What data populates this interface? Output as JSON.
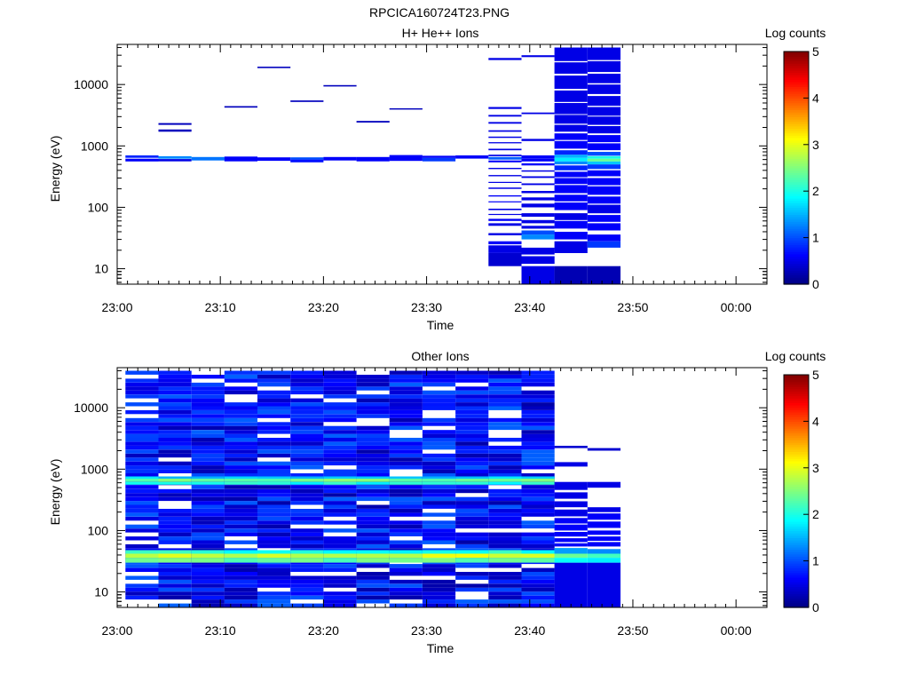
{
  "figure_title": "RPCICA160724T23.PNG",
  "chart_data": [
    {
      "type": "heatmap",
      "title": "H+ He++ Ions",
      "xlabel": "Time",
      "ylabel": "Energy (eV)",
      "x_tick_labels": [
        "23:00",
        "23:10",
        "23:20",
        "23:30",
        "23:40",
        "23:50",
        "00:00"
      ],
      "y_tick_labels": [
        "10",
        "100",
        "1000",
        "10000"
      ],
      "y_scale": "log",
      "ylim": [
        5.6,
        45000
      ],
      "xlim_minutes": [
        0,
        63
      ],
      "colorbar": {
        "label": "Log counts",
        "range": [
          0,
          5
        ],
        "tick_labels": [
          "0",
          "1",
          "2",
          "3",
          "4",
          "5"
        ]
      },
      "columns": [
        {
          "t": [
            0.8,
            4.0
          ],
          "cells": [
            [
              560,
              620,
              0.6
            ],
            [
              640,
              700,
              0.8
            ]
          ]
        },
        {
          "t": [
            4.0,
            7.2
          ],
          "cells": [
            [
              560,
              610,
              0.5
            ],
            [
              620,
              680,
              1.3
            ],
            [
              1700,
              1850,
              0.3
            ],
            [
              2200,
              2350,
              0.3
            ]
          ]
        },
        {
          "t": [
            7.2,
            10.4
          ],
          "cells": [
            [
              580,
              660,
              1.2
            ]
          ]
        },
        {
          "t": [
            10.4,
            13.6
          ],
          "cells": [
            [
              560,
              670,
              0.6
            ],
            [
              4200,
              4450,
              0.3
            ]
          ]
        },
        {
          "t": [
            13.6,
            16.8
          ],
          "cells": [
            [
              570,
              650,
              0.6
            ],
            [
              18500,
              19500,
              0.3
            ]
          ]
        },
        {
          "t": [
            16.8,
            20.0
          ],
          "cells": [
            [
              540,
              600,
              0.7
            ],
            [
              600,
              650,
              1.0
            ],
            [
              5200,
              5500,
              0.3
            ]
          ]
        },
        {
          "t": [
            20.0,
            23.2
          ],
          "cells": [
            [
              580,
              660,
              0.6
            ],
            [
              9300,
              9800,
              0.3
            ]
          ]
        },
        {
          "t": [
            23.2,
            26.4
          ],
          "cells": [
            [
              560,
              660,
              0.6
            ],
            [
              2400,
              2550,
              0.3
            ]
          ]
        },
        {
          "t": [
            26.4,
            29.6
          ],
          "cells": [
            [
              570,
              710,
              0.6
            ],
            [
              3900,
              4100,
              0.3
            ]
          ]
        },
        {
          "t": [
            29.6,
            32.8
          ],
          "cells": [
            [
              560,
              640,
              0.9
            ],
            [
              640,
              690,
              0.6
            ]
          ]
        },
        {
          "t": [
            32.8,
            36.0
          ],
          "cells": [
            [
              620,
              700,
              0.6
            ]
          ]
        },
        {
          "t": [
            36.0,
            39.2
          ],
          "cells": [
            [
              11,
              18,
              0.4
            ],
            [
              18,
              24,
              0.5
            ],
            [
              25,
              28,
              0.6
            ],
            [
              35,
              38,
              0.5
            ],
            [
              50,
              55,
              0.5
            ],
            [
              60,
              65,
              0.6
            ],
            [
              75,
              78,
              0.5
            ],
            [
              90,
              95,
              0.5
            ],
            [
              120,
              125,
              0.6
            ],
            [
              150,
              157,
              0.6
            ],
            [
              200,
              210,
              0.5
            ],
            [
              250,
              260,
              0.5
            ],
            [
              320,
              335,
              0.5
            ],
            [
              420,
              440,
              0.5
            ],
            [
              540,
              580,
              0.6
            ],
            [
              600,
              660,
              1.1
            ],
            [
              680,
              720,
              0.5
            ],
            [
              850,
              900,
              0.5
            ],
            [
              1100,
              1150,
              0.5
            ],
            [
              1350,
              1420,
              0.5
            ],
            [
              1700,
              1800,
              0.5
            ],
            [
              2300,
              2450,
              0.5
            ],
            [
              3000,
              3200,
              0.5
            ],
            [
              4000,
              4300,
              0.5
            ],
            [
              25000,
              27000,
              0.5
            ]
          ]
        },
        {
          "t": [
            39.2,
            42.4
          ],
          "cells": [
            [
              5.6,
              11,
              0.5
            ],
            [
              12,
              16,
              0.5
            ],
            [
              17,
              22,
              0.5
            ],
            [
              30,
              36,
              1.3
            ],
            [
              36,
              42,
              1.0
            ],
            [
              45,
              50,
              0.5
            ],
            [
              55,
              62,
              0.5
            ],
            [
              70,
              80,
              0.5
            ],
            [
              100,
              115,
              0.5
            ],
            [
              130,
              145,
              0.5
            ],
            [
              170,
              185,
              0.5
            ],
            [
              230,
              245,
              0.5
            ],
            [
              300,
              320,
              0.5
            ],
            [
              380,
              400,
              0.5
            ],
            [
              480,
              520,
              0.6
            ],
            [
              560,
              620,
              0.6
            ],
            [
              620,
              700,
              0.6
            ],
            [
              1200,
              1300,
              0.5
            ],
            [
              3300,
              3500,
              0.5
            ],
            [
              28000,
              30000,
              0.5
            ]
          ]
        },
        {
          "t": [
            42.4,
            45.6
          ],
          "cells": [
            [
              5.6,
              11,
              0.25
            ],
            [
              18,
              28,
              0.5
            ],
            [
              30,
              40,
              0.6
            ],
            [
              45,
              60,
              0.6
            ],
            [
              62,
              80,
              0.5
            ],
            [
              90,
              120,
              0.6
            ],
            [
              125,
              160,
              0.6
            ],
            [
              170,
              230,
              0.6
            ],
            [
              240,
              300,
              0.6
            ],
            [
              310,
              380,
              0.6
            ],
            [
              400,
              480,
              0.8
            ],
            [
              500,
              560,
              1.3
            ],
            [
              560,
              640,
              1.8
            ],
            [
              640,
              720,
              1.5
            ],
            [
              720,
              850,
              0.8
            ],
            [
              900,
              1200,
              0.6
            ],
            [
              1250,
              1600,
              0.6
            ],
            [
              1700,
              2200,
              0.5
            ],
            [
              2300,
              3200,
              0.5
            ],
            [
              3300,
              5000,
              0.5
            ],
            [
              5200,
              8000,
              0.5
            ],
            [
              8500,
              14000,
              0.5
            ],
            [
              15000,
              23000,
              0.5
            ],
            [
              24000,
              40000,
              0.5
            ]
          ]
        },
        {
          "t": [
            45.6,
            48.8
          ],
          "cells": [
            [
              5.6,
              11,
              0.25
            ],
            [
              22,
              28,
              0.9
            ],
            [
              28,
              36,
              0.6
            ],
            [
              42,
              55,
              0.6
            ],
            [
              58,
              75,
              0.6
            ],
            [
              80,
              110,
              0.5
            ],
            [
              115,
              150,
              0.6
            ],
            [
              160,
              220,
              0.6
            ],
            [
              230,
              300,
              0.6
            ],
            [
              320,
              400,
              0.6
            ],
            [
              420,
              500,
              0.9
            ],
            [
              500,
              560,
              1.6
            ],
            [
              560,
              620,
              2.4
            ],
            [
              620,
              680,
              2.0
            ],
            [
              690,
              800,
              1.0
            ],
            [
              850,
              1100,
              0.6
            ],
            [
              1150,
              1500,
              0.6
            ],
            [
              1600,
              2100,
              0.5
            ],
            [
              2200,
              3000,
              0.5
            ],
            [
              3100,
              4300,
              0.5
            ],
            [
              4500,
              6500,
              0.5
            ],
            [
              7000,
              10000,
              0.5
            ],
            [
              10500,
              15000,
              0.5
            ],
            [
              16000,
              24000,
              0.5
            ],
            [
              25000,
              40000,
              0.5
            ]
          ]
        }
      ]
    },
    {
      "type": "heatmap",
      "title": "Other Ions",
      "xlabel": "Time",
      "ylabel": "Energy (eV)",
      "x_tick_labels": [
        "23:00",
        "23:10",
        "23:20",
        "23:30",
        "23:40",
        "23:50",
        "00:00"
      ],
      "y_tick_labels": [
        "10",
        "100",
        "1000",
        "10000"
      ],
      "y_scale": "log",
      "ylim": [
        5.6,
        45000
      ],
      "xlim_minutes": [
        0,
        63
      ],
      "colorbar": {
        "label": "Log counts",
        "range": [
          0,
          5
        ],
        "tick_labels": [
          "0",
          "1",
          "2",
          "3",
          "4",
          "5"
        ]
      },
      "dense_columns": {
        "t_start": 0.8,
        "t_step": 3.2,
        "count": 13,
        "e_min": 5.6,
        "e_max": 40000
      },
      "bands": [
        {
          "e": [
            30,
            36
          ],
          "v": 2.4
        },
        {
          "e": [
            36,
            42
          ],
          "v": 2.9
        },
        {
          "e": [
            42,
            48
          ],
          "v": 2.0
        },
        {
          "e": [
            560,
            620
          ],
          "v": 2.0
        },
        {
          "e": [
            620,
            700
          ],
          "v": 2.4
        },
        {
          "e": [
            700,
            760
          ],
          "v": 1.7
        }
      ],
      "sparse_columns": [
        {
          "t": [
            42.4,
            45.6
          ],
          "cells": [
            [
              5.6,
              30,
              0.5
            ],
            [
              30,
              36,
              1.9
            ],
            [
              36,
              42,
              2.4
            ],
            [
              42,
              52,
              1.4
            ],
            [
              55,
              62,
              0.6
            ],
            [
              65,
              75,
              0.6
            ],
            [
              80,
              95,
              0.6
            ],
            [
              100,
              125,
              0.6
            ],
            [
              130,
              160,
              0.6
            ],
            [
              170,
              220,
              0.5
            ],
            [
              240,
              300,
              0.5
            ],
            [
              330,
              420,
              0.5
            ],
            [
              460,
              620,
              0.5
            ],
            [
              1100,
              1300,
              0.5
            ],
            [
              2200,
              2400,
              0.4
            ]
          ]
        },
        {
          "t": [
            45.6,
            48.8
          ],
          "cells": [
            [
              5.6,
              30,
              0.5
            ],
            [
              30,
              36,
              1.8
            ],
            [
              36,
              42,
              2.2
            ],
            [
              42,
              50,
              1.3
            ],
            [
              55,
              65,
              0.6
            ],
            [
              68,
              80,
              0.6
            ],
            [
              85,
              100,
              0.6
            ],
            [
              110,
              140,
              0.6
            ],
            [
              150,
              190,
              0.6
            ],
            [
              200,
              240,
              0.5
            ],
            [
              500,
              620,
              0.5
            ],
            [
              2000,
              2200,
              0.4
            ]
          ]
        }
      ]
    }
  ]
}
